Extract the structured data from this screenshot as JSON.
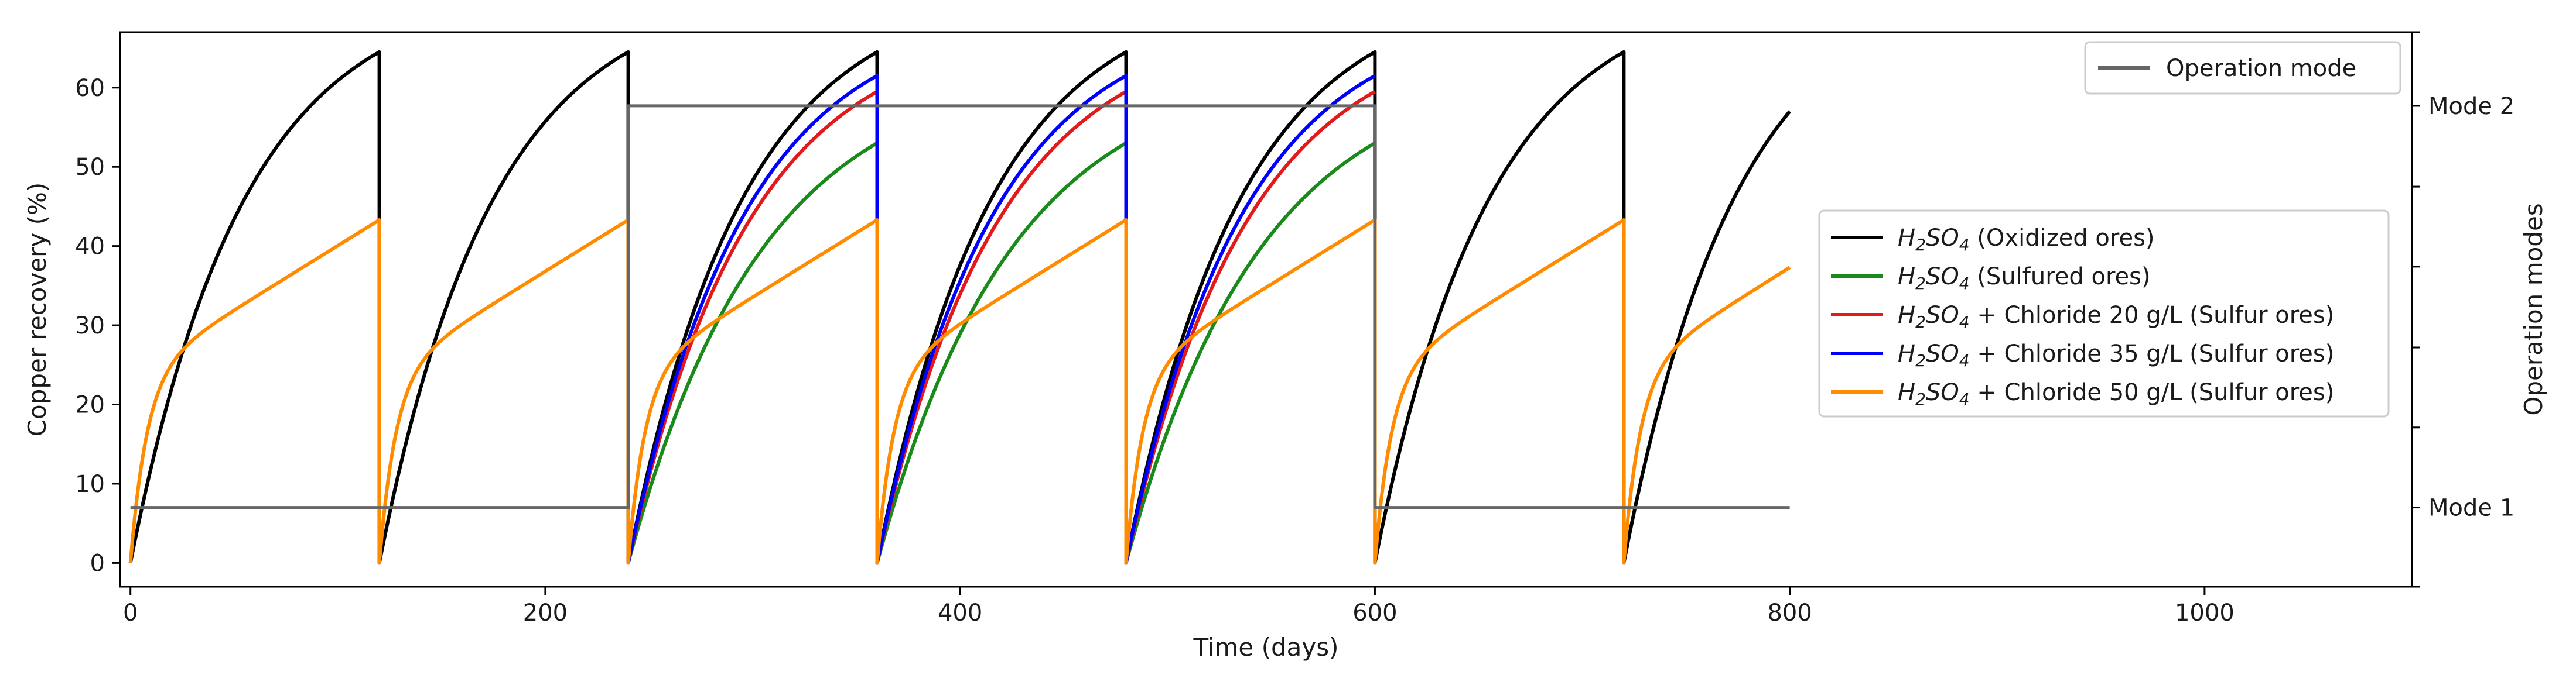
{
  "chart_data": {
    "type": "line",
    "title": "",
    "xlabel": "Time (days)",
    "ylabel": "Copper recovery (%)",
    "ylabel_right": "Operation modes",
    "xlim": [
      -5,
      1100
    ],
    "ylim": [
      -3,
      67
    ],
    "xticks": [
      0,
      200,
      400,
      600,
      800,
      1000
    ],
    "yticks": [
      0,
      10,
      20,
      30,
      40,
      50,
      60
    ],
    "right_ticks": [
      {
        "label": "Mode 1",
        "value": 7
      },
      {
        "label": "Mode 2",
        "value": 57.7
      }
    ],
    "right_minor_ticks": [
      17.1,
      27.2,
      37.4,
      47.5
    ],
    "cycle_length_days": 120,
    "series": [
      {
        "name": "H2SO4 (Oxidized ores)",
        "legend_main": "H",
        "legend_sub1": "2",
        "legend_mid": "SO",
        "legend_sub2": "4",
        "legend_rest": " (Oxidized ores)",
        "color": "#000000",
        "shape": "exp",
        "tau": 55,
        "cycles": [
          {
            "start": 0,
            "end": 120,
            "peak": 64.5
          },
          {
            "start": 120,
            "end": 240,
            "peak": 64.5
          },
          {
            "start": 240,
            "end": 360,
            "peak": 64.5
          },
          {
            "start": 360,
            "end": 480,
            "peak": 64.5
          },
          {
            "start": 480,
            "end": 600,
            "peak": 64.5
          },
          {
            "start": 600,
            "end": 720,
            "peak": 64.5
          },
          {
            "start": 720,
            "end": 800,
            "peak": 57.0
          }
        ]
      },
      {
        "name": "H2SO4 (Sulfured ores)",
        "legend_main": "H",
        "legend_sub1": "2",
        "legend_mid": "SO",
        "legend_sub2": "4",
        "legend_rest": " (Sulfured ores)",
        "color": "#1a8a1a",
        "shape": "exp",
        "tau": 65,
        "cycles": [
          {
            "start": 240,
            "end": 360,
            "peak": 53.0
          },
          {
            "start": 360,
            "end": 480,
            "peak": 53.0
          },
          {
            "start": 480,
            "end": 600,
            "peak": 53.0
          }
        ]
      },
      {
        "name": "H2SO4 + Chloride 20 g/L (Sulfur ores)",
        "legend_main": "H",
        "legend_sub1": "2",
        "legend_mid": "SO",
        "legend_sub2": "4",
        "legend_rest": " + Chloride 20 g/L (Sulfur ores)",
        "color": "#e31a1c",
        "shape": "exp",
        "tau": 58,
        "cycles": [
          {
            "start": 240,
            "end": 360,
            "peak": 59.5
          },
          {
            "start": 360,
            "end": 480,
            "peak": 59.5
          },
          {
            "start": 480,
            "end": 600,
            "peak": 59.5
          }
        ]
      },
      {
        "name": "H2SO4 + Chloride 35 g/L (Sulfur ores)",
        "legend_main": "H",
        "legend_sub1": "2",
        "legend_mid": "SO",
        "legend_sub2": "4",
        "legend_rest": " + Chloride 35 g/L (Sulfur ores)",
        "color": "#0000ff",
        "shape": "exp",
        "tau": 56,
        "cycles": [
          {
            "start": 240,
            "end": 360,
            "peak": 61.5
          },
          {
            "start": 360,
            "end": 480,
            "peak": 61.5
          },
          {
            "start": 480,
            "end": 600,
            "peak": 61.5
          }
        ]
      },
      {
        "name": "H2SO4 + Chloride 50 g/L (Sulfur ores)",
        "legend_main": "H",
        "legend_sub1": "2",
        "legend_mid": "SO",
        "legend_sub2": "4",
        "legend_rest": " + Chloride 50 g/L (Sulfur ores)",
        "color": "#ff8c00",
        "shape": "orange",
        "cycles": [
          {
            "start": 0,
            "end": 120,
            "peak": 43.3
          },
          {
            "start": 120,
            "end": 240,
            "peak": 43.3
          },
          {
            "start": 240,
            "end": 360,
            "peak": 43.3
          },
          {
            "start": 360,
            "end": 480,
            "peak": 43.3
          },
          {
            "start": 480,
            "end": 600,
            "peak": 43.3
          },
          {
            "start": 600,
            "end": 720,
            "peak": 43.3
          },
          {
            "start": 720,
            "end": 800,
            "peak": 37.3
          }
        ]
      }
    ],
    "operation_mode": {
      "name": "Operation mode",
      "color": "#666666",
      "points": [
        [
          0,
          7
        ],
        [
          240,
          7
        ],
        [
          240,
          57.7
        ],
        [
          600,
          57.7
        ],
        [
          600,
          7
        ],
        [
          800,
          7
        ]
      ]
    },
    "legend_upper": {
      "placement": "top-right",
      "entries": [
        "Operation mode"
      ]
    },
    "legend_lower": {
      "placement": "right-center"
    }
  }
}
